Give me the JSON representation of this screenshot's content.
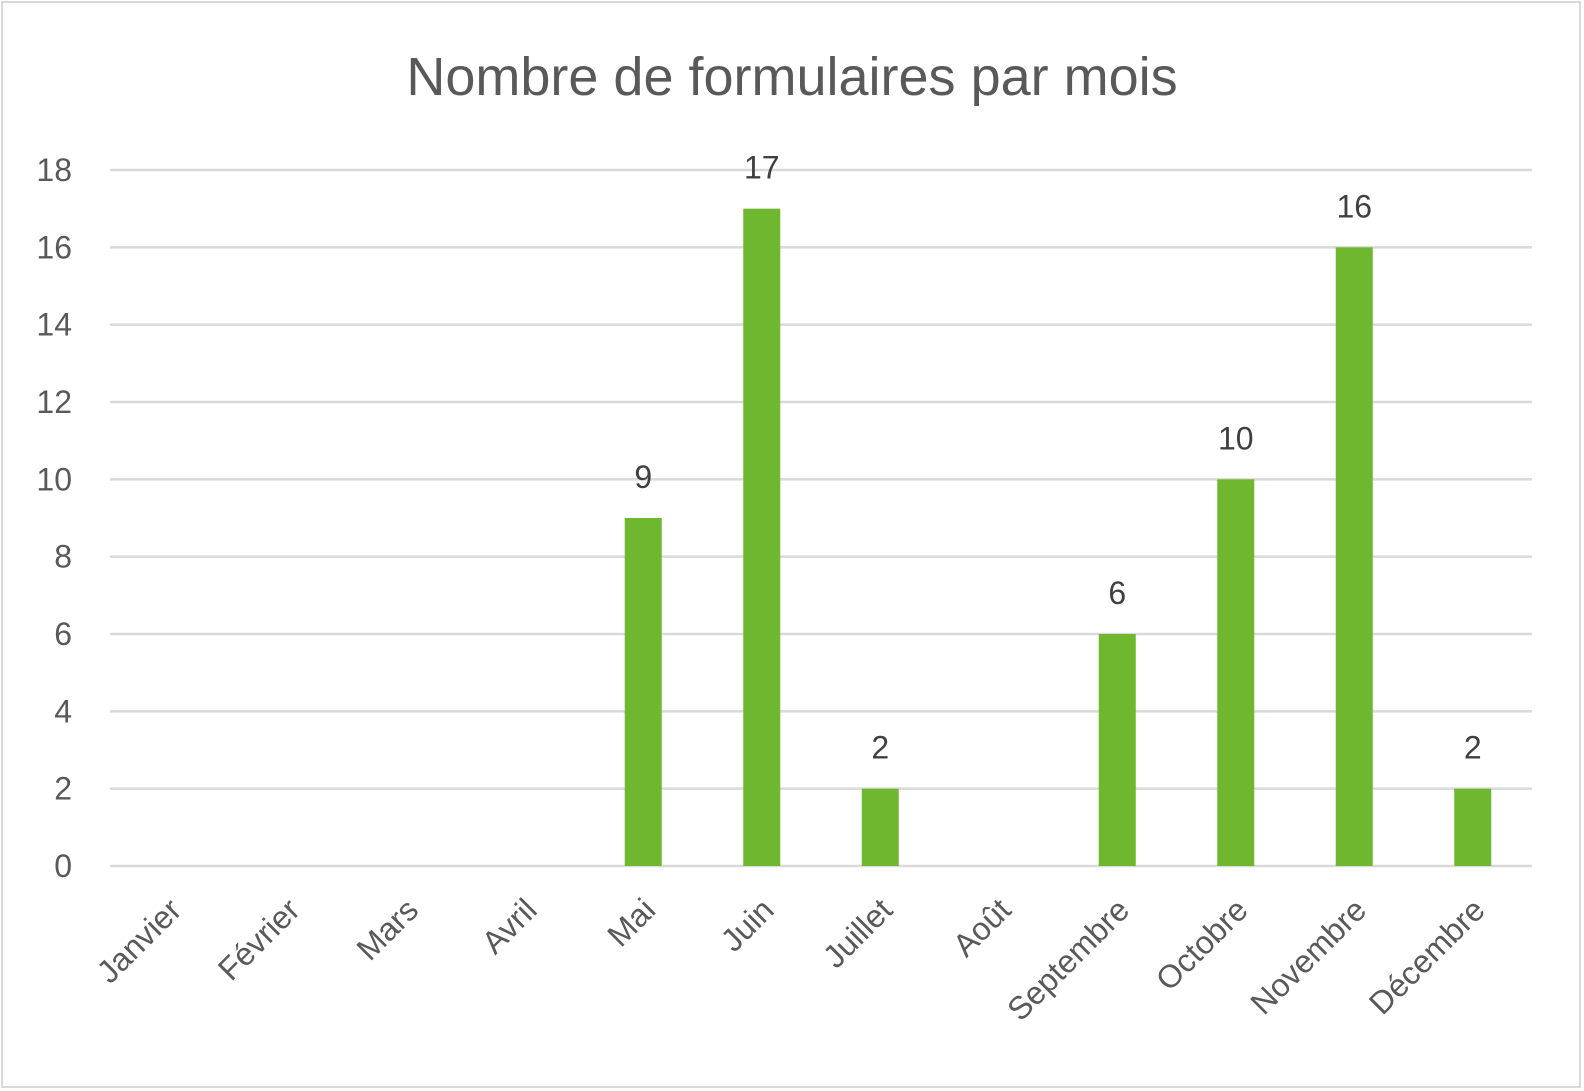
{
  "chart_data": {
    "type": "bar",
    "title": "Nombre de formulaires par mois",
    "categories": [
      "Janvier",
      "Février",
      "Mars",
      "Avril",
      "Mai",
      "Juin",
      "Juillet",
      "Août",
      "Septembre",
      "Octobre",
      "Novembre",
      "Décembre"
    ],
    "values": [
      0,
      0,
      0,
      0,
      9,
      17,
      2,
      0,
      6,
      10,
      16,
      2
    ],
    "data_labels": [
      "",
      "",
      "",
      "",
      "9",
      "17",
      "2",
      "",
      "6",
      "10",
      "16",
      "2"
    ],
    "xlabel": "",
    "ylabel": "",
    "ylim": [
      0,
      18
    ],
    "yticks": [
      "0",
      "2",
      "4",
      "6",
      "8",
      "10",
      "12",
      "14",
      "16",
      "18"
    ],
    "grid": true,
    "legend": "none",
    "bar_color": "#6fb72e"
  }
}
